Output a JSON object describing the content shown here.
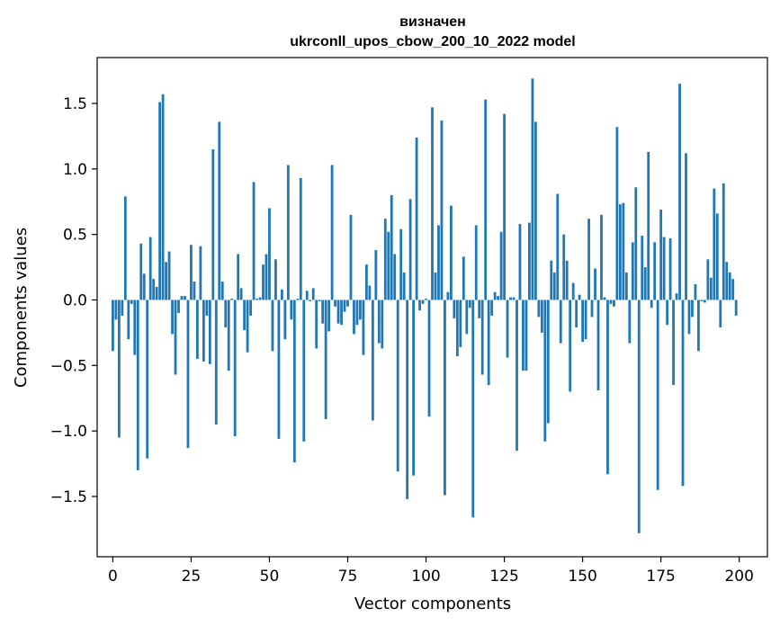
{
  "chart_data": {
    "type": "bar",
    "title_line1": "визначен",
    "title_line2": "ukrconll_upos_cbow_200_10_2022 model",
    "xlabel": "Vector components",
    "ylabel": "Components values",
    "xlim": [
      -5,
      209
    ],
    "ylim": [
      -1.96,
      1.85
    ],
    "xticks": [
      0,
      25,
      50,
      75,
      100,
      125,
      150,
      175,
      200
    ],
    "yticks": [
      1.5,
      1.0,
      0.5,
      0.0,
      -0.5,
      -1.0,
      -1.5
    ],
    "ytick_labels": [
      "1.5",
      "1.0",
      "0.5",
      "0.0",
      "−0.5",
      "−1.0",
      "−1.5"
    ],
    "values": [
      -0.39,
      -0.15,
      -1.05,
      -0.12,
      0.79,
      -0.3,
      -0.03,
      -0.42,
      -1.3,
      0.43,
      0.2,
      -1.21,
      0.48,
      0.16,
      0.1,
      1.51,
      1.57,
      0.29,
      0.37,
      -0.26,
      -0.57,
      -0.1,
      0.03,
      0.03,
      -1.13,
      0.42,
      0.14,
      -0.45,
      0.41,
      -0.47,
      -0.12,
      -0.49,
      1.15,
      -0.95,
      1.36,
      0.14,
      -0.21,
      -0.54,
      0.01,
      -1.04,
      0.35,
      0.09,
      -0.23,
      -0.4,
      -0.12,
      0.9,
      0.01,
      0.02,
      0.27,
      0.35,
      0.7,
      -0.39,
      0.31,
      -1.06,
      0.08,
      -0.3,
      1.03,
      -0.15,
      -1.24,
      0.01,
      0.93,
      -1.08,
      0.07,
      -0.01,
      0.09,
      -0.37,
      -0.01,
      -0.18,
      -0.91,
      -0.24,
      1.03,
      -0.05,
      -0.18,
      -0.19,
      -0.09,
      -0.05,
      0.65,
      -0.26,
      -0.19,
      -0.15,
      -0.42,
      0.27,
      0.11,
      -0.92,
      0.38,
      -0.33,
      -0.37,
      0.62,
      0.52,
      0.8,
      0.35,
      -1.31,
      0.54,
      0.21,
      -1.52,
      0.77,
      -1.34,
      1.24,
      -0.08,
      -0.03,
      0.01,
      -0.89,
      1.47,
      0.21,
      0.57,
      1.37,
      -1.49,
      0.06,
      0.72,
      -0.14,
      -0.43,
      -0.36,
      0.33,
      -0.26,
      -0.06,
      -1.66,
      0.57,
      -0.14,
      -0.57,
      1.53,
      -0.65,
      -0.12,
      0.06,
      0.03,
      0.52,
      1.42,
      -0.44,
      0.02,
      0.02,
      -1.15,
      0.58,
      -0.54,
      -0.54,
      0.59,
      1.69,
      1.36,
      -0.13,
      -0.25,
      -1.08,
      -0.94,
      0.3,
      0.21,
      0.81,
      -0.33,
      0.5,
      0.3,
      -0.7,
      0.13,
      -0.21,
      0.04,
      -0.32,
      -0.3,
      0.62,
      -0.13,
      0.24,
      -0.69,
      0.65,
      0.02,
      -1.33,
      -0.03,
      -0.05,
      1.32,
      0.73,
      0.74,
      0.21,
      -0.33,
      0.44,
      0.86,
      -1.78,
      0.49,
      0.25,
      1.13,
      -0.06,
      0.44,
      -1.45,
      0.69,
      0.48,
      -0.19,
      0.47,
      -0.65,
      0.05,
      1.65,
      -1.42,
      1.12,
      -0.26,
      -0.13,
      0.12,
      -0.39,
      -0.01,
      -0.02,
      0.31,
      0.17,
      0.85,
      0.66,
      -0.21,
      0.89,
      0.29,
      0.21,
      0.16,
      -0.12
    ]
  }
}
